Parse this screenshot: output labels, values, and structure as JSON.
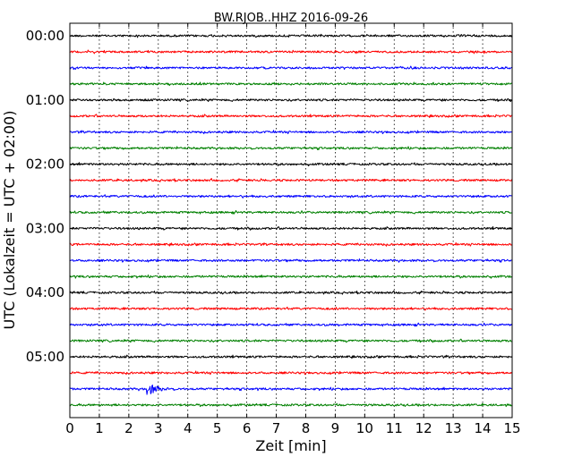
{
  "chart_data": {
    "type": "line",
    "title": "BW.RJOB..HHZ 2016-09-26",
    "xlabel": "Zeit  [min]",
    "ylabel": "UTC (Lokalzeit = UTC + 02:00)",
    "xlim": [
      0,
      15
    ],
    "x_ticks": [
      0,
      1,
      2,
      3,
      4,
      5,
      6,
      7,
      8,
      9,
      10,
      11,
      12,
      13,
      14,
      15
    ],
    "y_tick_labels": [
      "00:00",
      "01:00",
      "02:00",
      "03:00",
      "04:00",
      "05:00"
    ],
    "grid": "vertical dotted at each minute",
    "trace_colors": [
      "#000000",
      "#ff0000",
      "#0000ff",
      "#008000"
    ],
    "series": [
      {
        "start": "00:00",
        "color": "#000000"
      },
      {
        "start": "00:15",
        "color": "#ff0000"
      },
      {
        "start": "00:30",
        "color": "#0000ff"
      },
      {
        "start": "00:45",
        "color": "#008000"
      },
      {
        "start": "01:00",
        "color": "#000000"
      },
      {
        "start": "01:15",
        "color": "#ff0000"
      },
      {
        "start": "01:30",
        "color": "#0000ff"
      },
      {
        "start": "01:45",
        "color": "#008000"
      },
      {
        "start": "02:00",
        "color": "#000000"
      },
      {
        "start": "02:15",
        "color": "#ff0000"
      },
      {
        "start": "02:30",
        "color": "#0000ff"
      },
      {
        "start": "02:45",
        "color": "#008000"
      },
      {
        "start": "03:00",
        "color": "#000000"
      },
      {
        "start": "03:15",
        "color": "#ff0000"
      },
      {
        "start": "03:30",
        "color": "#0000ff"
      },
      {
        "start": "03:45",
        "color": "#008000"
      },
      {
        "start": "04:00",
        "color": "#000000"
      },
      {
        "start": "04:15",
        "color": "#ff0000"
      },
      {
        "start": "04:30",
        "color": "#0000ff"
      },
      {
        "start": "04:45",
        "color": "#008000"
      },
      {
        "start": "05:00",
        "color": "#000000"
      },
      {
        "start": "05:15",
        "color": "#ff0000"
      },
      {
        "start": "05:30",
        "color": "#0000ff",
        "event_minute": 2.6
      },
      {
        "start": "05:45",
        "color": "#008000"
      }
    ]
  }
}
